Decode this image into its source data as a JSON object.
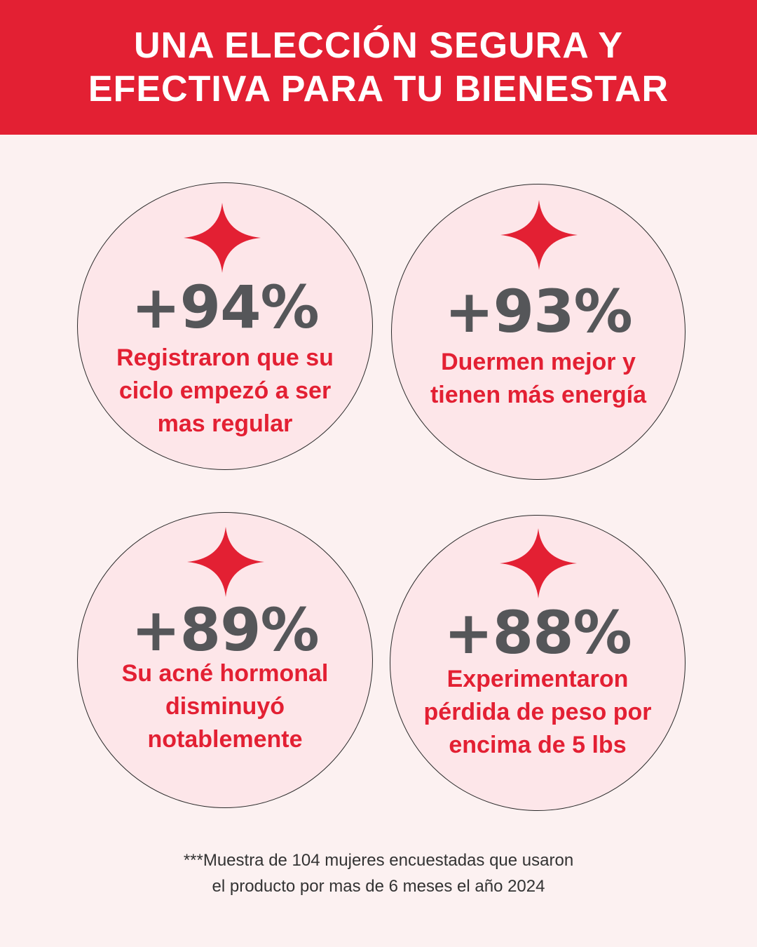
{
  "header": {
    "title_line1": "UNA ELECCIÓN SEGURA Y",
    "title_line2": "EFECTIVA PARA TU BIENESTAR"
  },
  "stats": [
    {
      "value": "+94%",
      "lines": [
        "Registraron que su",
        "ciclo empezó a ser",
        "mas regular"
      ]
    },
    {
      "value": "+93%",
      "lines": [
        "Duermen mejor y",
        "tienen más energía"
      ]
    },
    {
      "value": "+89%",
      "lines": [
        "Su acné hormonal",
        "disminuyó",
        "notablemente"
      ]
    },
    {
      "value": "+88%",
      "lines": [
        "Experimentaron",
        "pérdida  de peso por",
        "encima de 5 lbs"
      ]
    }
  ],
  "footnote": {
    "line1": "***Muestra de 104 mujeres encuestadas que usaron",
    "line2": "el producto por mas de 6 meses  el año 2024"
  },
  "colors": {
    "accent_red": "#e32033",
    "value_gray": "#555659",
    "circle_fill": "#fde6e9",
    "background": "#fcf1f1"
  },
  "icons": {
    "sparkle": "four-point-star-icon"
  }
}
